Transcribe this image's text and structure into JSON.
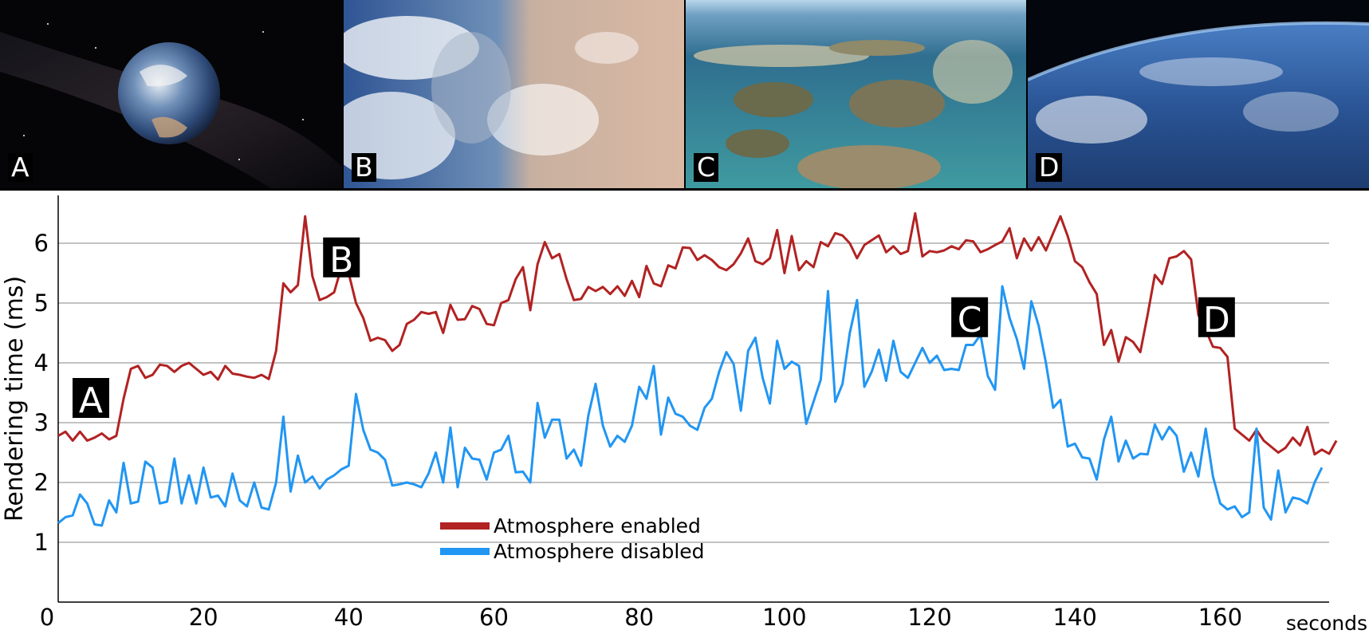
{
  "panels": [
    {
      "label": "A",
      "scene": "earth-globe-in-space"
    },
    {
      "label": "B",
      "scene": "satellite-view-clouds-and-coast"
    },
    {
      "label": "C",
      "scene": "oblique-view-islands-and-shallows"
    },
    {
      "label": "D",
      "scene": "horizon-from-orbit"
    }
  ],
  "colors": {
    "enabled": "#b22222",
    "disabled": "#2196f3",
    "grid": "#9e9e9e"
  },
  "chart_data": {
    "type": "line",
    "title": "",
    "xlabel": "seconds",
    "ylabel": "Rendering time (ms)",
    "xlim": [
      0,
      175
    ],
    "ylim": [
      0,
      6.8
    ],
    "xticks": [
      0,
      20,
      40,
      60,
      80,
      100,
      120,
      140,
      160
    ],
    "yticks": [
      1,
      2,
      3,
      4,
      5,
      6
    ],
    "grid": "horizontal",
    "legend_position": "bottom-center",
    "annotations": [
      {
        "label": "A",
        "x": 4.5,
        "y": 3.4
      },
      {
        "label": "B",
        "x": 39,
        "y": 5.75
      },
      {
        "label": "C",
        "x": 125.5,
        "y": 4.75
      },
      {
        "label": "D",
        "x": 159.5,
        "y": 4.75
      }
    ],
    "x_start": 0,
    "x_step": 1,
    "series": [
      {
        "name": "Atmosphere enabled",
        "values": [
          2.78,
          2.85,
          2.7,
          2.85,
          2.7,
          2.75,
          2.82,
          2.72,
          2.78,
          3.4,
          3.9,
          3.95,
          3.75,
          3.8,
          3.97,
          3.95,
          3.85,
          3.95,
          4.0,
          3.9,
          3.8,
          3.85,
          3.72,
          3.95,
          3.82,
          3.8,
          3.77,
          3.75,
          3.8,
          3.73,
          4.2,
          5.33,
          5.18,
          5.3,
          6.45,
          5.45,
          5.05,
          5.1,
          5.18,
          5.6,
          5.5,
          5.0,
          4.75,
          4.37,
          4.42,
          4.38,
          4.2,
          4.3,
          4.65,
          4.72,
          4.85,
          4.82,
          4.85,
          4.5,
          4.97,
          4.72,
          4.73,
          4.95,
          4.9,
          4.65,
          4.63,
          5.0,
          5.05,
          5.4,
          5.6,
          4.88,
          5.65,
          6.02,
          5.75,
          5.82,
          5.4,
          5.05,
          5.07,
          5.27,
          5.2,
          5.27,
          5.15,
          5.28,
          5.12,
          5.37,
          5.1,
          5.62,
          5.33,
          5.28,
          5.63,
          5.58,
          5.93,
          5.92,
          5.72,
          5.8,
          5.72,
          5.6,
          5.55,
          5.65,
          5.83,
          6.08,
          5.7,
          5.65,
          5.75,
          6.22,
          5.5,
          6.12,
          5.55,
          5.7,
          5.6,
          6.02,
          5.95,
          6.17,
          6.13,
          6.0,
          5.75,
          5.97,
          6.05,
          6.13,
          5.85,
          5.95,
          5.82,
          5.87,
          6.5,
          5.78,
          5.87,
          5.85,
          5.88,
          5.95,
          5.9,
          6.05,
          6.03,
          5.85,
          5.9,
          5.97,
          6.03,
          6.25,
          5.75,
          6.08,
          5.88,
          6.1,
          5.88,
          6.17,
          6.45,
          6.12,
          5.7,
          5.6,
          5.35,
          5.15,
          4.3,
          4.55,
          4.02,
          4.43,
          4.35,
          4.18,
          4.8,
          5.47,
          5.32,
          5.75,
          5.78,
          5.87,
          5.73,
          4.8,
          4.55,
          4.27,
          4.25,
          4.1,
          2.9,
          2.8,
          2.7,
          2.88,
          2.7,
          2.6,
          2.5,
          2.58,
          2.75,
          2.62,
          2.93,
          2.47,
          2.55,
          2.48,
          2.7
        ]
      },
      {
        "name": "Atmosphere disabled",
        "values": [
          1.32,
          1.42,
          1.45,
          1.8,
          1.65,
          1.3,
          1.28,
          1.7,
          1.5,
          2.33,
          1.65,
          1.68,
          2.35,
          2.25,
          1.65,
          1.68,
          2.4,
          1.65,
          2.12,
          1.65,
          2.25,
          1.75,
          1.78,
          1.6,
          2.15,
          1.7,
          1.6,
          2.0,
          1.58,
          1.55,
          2.0,
          3.1,
          1.85,
          2.45,
          2.0,
          2.1,
          1.9,
          2.05,
          2.12,
          2.22,
          2.28,
          3.48,
          2.88,
          2.55,
          2.5,
          2.38,
          1.95,
          1.97,
          2.0,
          1.97,
          1.92,
          2.15,
          2.5,
          2.0,
          2.92,
          1.92,
          2.58,
          2.4,
          2.38,
          2.05,
          2.5,
          2.55,
          2.78,
          2.17,
          2.18,
          2.0,
          3.33,
          2.75,
          3.05,
          3.05,
          2.4,
          2.55,
          2.28,
          3.12,
          3.65,
          2.95,
          2.6,
          2.78,
          2.68,
          2.95,
          3.6,
          3.4,
          3.95,
          2.8,
          3.42,
          3.15,
          3.1,
          2.95,
          2.88,
          3.25,
          3.4,
          3.85,
          4.18,
          3.98,
          3.2,
          4.2,
          4.42,
          3.75,
          3.32,
          4.37,
          3.9,
          4.02,
          3.95,
          2.98,
          3.35,
          3.72,
          5.2,
          3.35,
          3.65,
          4.5,
          5.05,
          3.6,
          3.85,
          4.22,
          3.7,
          4.37,
          3.85,
          3.75,
          4.0,
          4.25,
          4.0,
          4.12,
          3.88,
          3.9,
          3.88,
          4.3,
          4.3,
          4.47,
          3.78,
          3.55,
          5.28,
          4.75,
          4.4,
          3.9,
          5.03,
          4.62,
          4.0,
          3.25,
          3.38,
          2.6,
          2.65,
          2.42,
          2.4,
          2.05,
          2.72,
          3.1,
          2.35,
          2.7,
          2.4,
          2.48,
          2.47,
          2.97,
          2.72,
          2.93,
          2.78,
          2.18,
          2.5,
          2.1,
          2.9,
          2.1,
          1.65,
          1.55,
          1.6,
          1.42,
          1.5,
          2.9,
          1.58,
          1.38,
          2.2,
          1.5,
          1.75,
          1.72,
          1.65,
          2.0,
          2.25
        ]
      }
    ]
  }
}
